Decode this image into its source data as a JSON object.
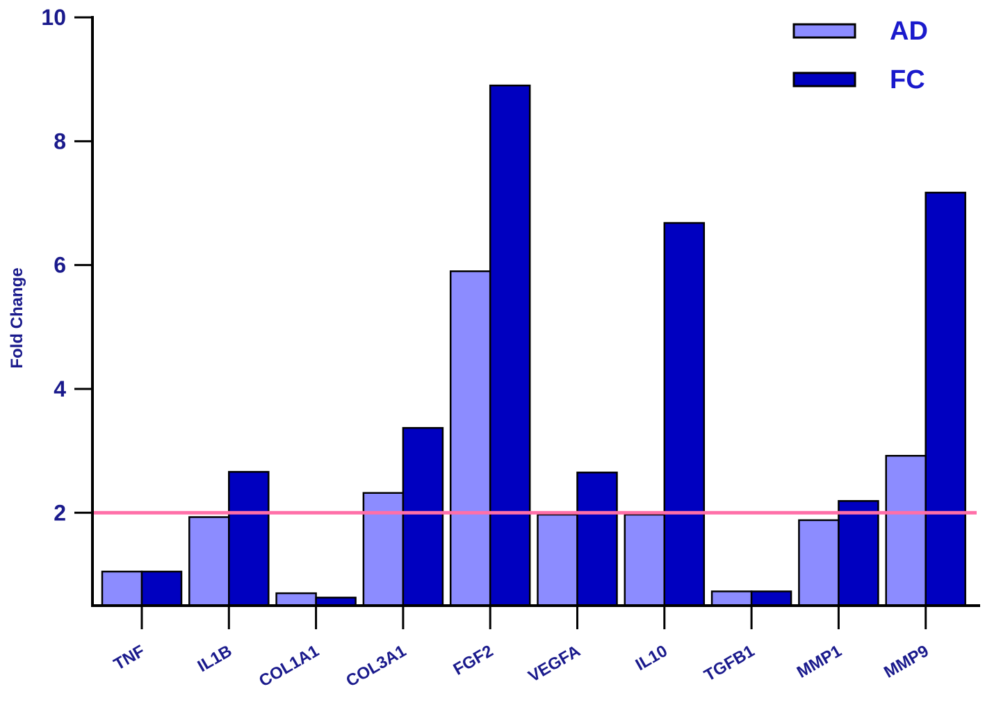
{
  "chart_data": {
    "type": "bar",
    "title": "",
    "xlabel": "",
    "ylabel": "Fold Change",
    "ylim": [
      0.5,
      10
    ],
    "yticks": [
      2,
      4,
      6,
      8,
      10
    ],
    "grid": false,
    "legend_position": "top-right",
    "categories": [
      "TNF",
      "IL1B",
      "COL1A1",
      "COL3A1",
      "FGF2",
      "VEGFA",
      "IL10",
      "TGFB1",
      "MMP1",
      "MMP9"
    ],
    "series": [
      {
        "name": "AD",
        "color": "#8c8cff",
        "values": [
          1.05,
          1.93,
          0.7,
          2.32,
          5.9,
          1.97,
          1.97,
          0.73,
          1.88,
          2.92
        ]
      },
      {
        "name": "FC",
        "color": "#0000c0",
        "values": [
          1.05,
          2.66,
          0.63,
          3.37,
          8.9,
          2.65,
          6.68,
          0.73,
          2.19,
          7.17
        ]
      }
    ],
    "reference_line": {
      "value": 2,
      "color": "#ff6fa8"
    }
  }
}
